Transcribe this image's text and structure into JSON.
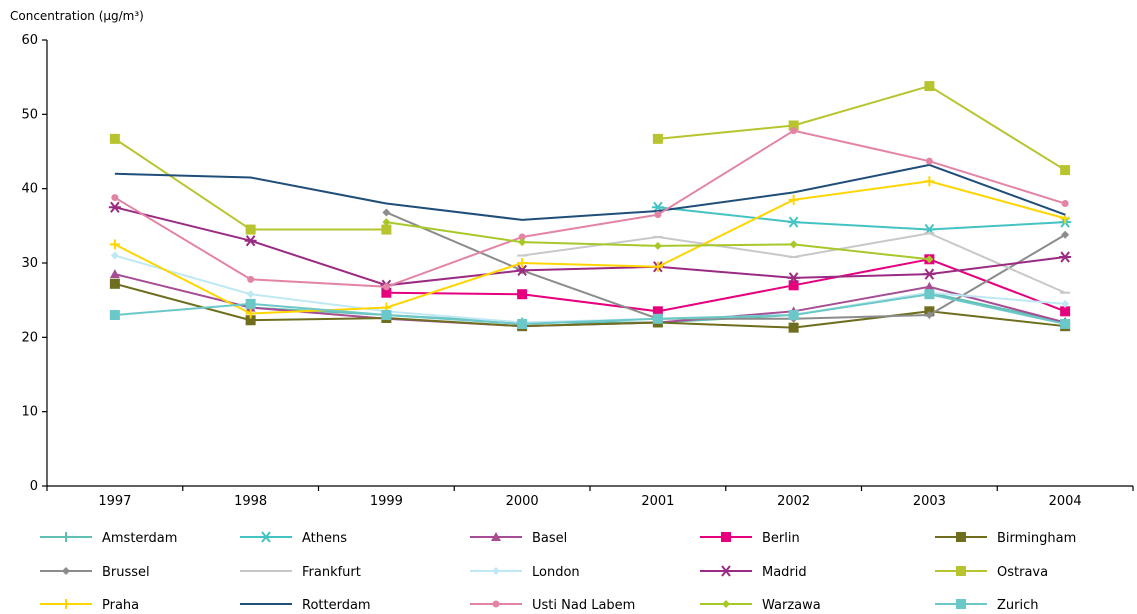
{
  "chart_data": {
    "type": "line",
    "ylabel": "Concentration (µg/m³)",
    "ylim": [
      0,
      60
    ],
    "yticks": [
      0,
      10,
      20,
      30,
      40,
      50,
      60
    ],
    "categories": [
      "1997",
      "1998",
      "1999",
      "2000",
      "2001",
      "2002",
      "2003",
      "2004"
    ],
    "grid": false,
    "legend_position": "bottom",
    "series": [
      {
        "name": "Amsterdam",
        "color": "#5fbfb0",
        "marker": "plus",
        "values": [
          null,
          24,
          23,
          22,
          22,
          23,
          26,
          22
        ]
      },
      {
        "name": "Athens",
        "color": "#44c3c3",
        "marker": "star",
        "values": [
          null,
          null,
          null,
          null,
          37.5,
          35.5,
          34.5,
          35.5
        ]
      },
      {
        "name": "Basel",
        "color": "#a64d94",
        "marker": "triangle",
        "values": [
          28.5,
          24,
          22.5,
          21.5,
          22,
          23.5,
          26.8,
          22
        ]
      },
      {
        "name": "Berlin",
        "color": "#e6007e",
        "marker": "square",
        "values": [
          null,
          null,
          26,
          25.8,
          23.5,
          27,
          30.5,
          23.5
        ]
      },
      {
        "name": "Birmingham",
        "color": "#6e6e1e",
        "marker": "square",
        "values": [
          27.2,
          22.3,
          22.6,
          21.5,
          22,
          21.3,
          23.5,
          21.5
        ]
      },
      {
        "name": "Brussel",
        "color": "#8c8c8c",
        "marker": "diamond",
        "values": [
          null,
          null,
          36.8,
          29,
          22.5,
          22.5,
          23,
          33.8
        ]
      },
      {
        "name": "Frankfurt",
        "color": "#c8c8c8",
        "marker": "dash",
        "values": [
          null,
          null,
          null,
          31,
          33.5,
          30.8,
          34,
          26
        ]
      },
      {
        "name": "London",
        "color": "#bfe8f5",
        "marker": "diamond",
        "values": [
          31,
          25.8,
          23.5,
          22,
          22.5,
          23,
          26,
          24.5
        ]
      },
      {
        "name": "Madrid",
        "color": "#9b2a82",
        "marker": "star",
        "values": [
          37.5,
          33,
          27,
          29,
          29.5,
          28,
          28.5,
          30.8
        ]
      },
      {
        "name": "Ostrava",
        "color": "#b8c42e",
        "marker": "square",
        "values": [
          46.7,
          34.5,
          34.5,
          null,
          46.7,
          48.5,
          53.8,
          42.5
        ]
      },
      {
        "name": "Praha",
        "color": "#ffd500",
        "marker": "plus",
        "values": [
          32.5,
          23.2,
          24,
          30,
          29.5,
          38.5,
          41,
          36
        ]
      },
      {
        "name": "Rotterdam",
        "color": "#1f4e79",
        "marker": "none",
        "values": [
          42,
          41.5,
          38,
          35.8,
          37,
          39.5,
          43.2,
          36.5
        ]
      },
      {
        "name": "Usti Nad Labem",
        "color": "#e383a6",
        "marker": "circle",
        "values": [
          38.8,
          27.8,
          26.8,
          33.5,
          36.5,
          47.8,
          43.7,
          38
        ]
      },
      {
        "name": "Warzawa",
        "color": "#a8c82a",
        "marker": "diamond",
        "values": [
          null,
          null,
          35.5,
          32.8,
          32.3,
          32.5,
          30.5,
          null
        ]
      },
      {
        "name": "Zurich",
        "color": "#6cc8c8",
        "marker": "square",
        "values": [
          23,
          24.5,
          23,
          21.8,
          22.5,
          23,
          25.8,
          21.8
        ]
      }
    ]
  }
}
